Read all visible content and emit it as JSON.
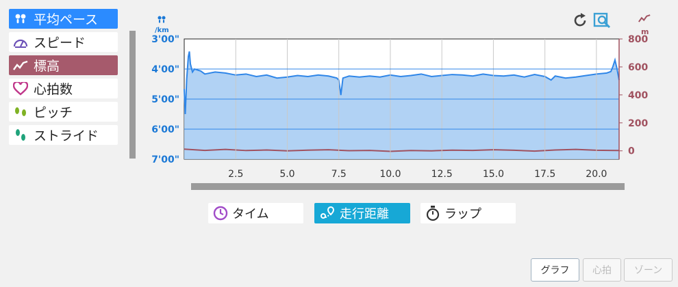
{
  "metrics": [
    {
      "label": "平均ペース",
      "icon": "footprints-icon",
      "state": "active-pace"
    },
    {
      "label": "スピード",
      "icon": "speedometer-icon",
      "state": ""
    },
    {
      "label": "標高",
      "icon": "elevation-icon",
      "state": "active-elev"
    },
    {
      "label": "心拍数",
      "icon": "heart-icon",
      "state": ""
    },
    {
      "label": "ピッチ",
      "icon": "cadence-icon",
      "state": ""
    },
    {
      "label": "ストライド",
      "icon": "stride-icon",
      "state": ""
    }
  ],
  "tabs": [
    {
      "label": "タイム",
      "icon": "clock-icon",
      "active": false
    },
    {
      "label": "走行距離",
      "icon": "route-icon",
      "active": true
    },
    {
      "label": "ラップ",
      "icon": "stopwatch-icon",
      "active": false
    }
  ],
  "modes": [
    {
      "label": "グラフ",
      "active": true
    },
    {
      "label": "心拍",
      "active": false
    },
    {
      "label": "ゾーン",
      "active": false
    }
  ],
  "chart_data": {
    "type": "line",
    "pace_unit": "/km",
    "elevation_unit": "m",
    "colors": {
      "pace": "#2f86e8",
      "pace_fill": "#a9cdf3",
      "elevation": "#a0515f",
      "left_axis": "#1a78d6",
      "right_axis": "#a0515f"
    },
    "left_ticks": [
      "3'00\"",
      "4'00\"",
      "5'00\"",
      "6'00\"",
      "7'00\""
    ],
    "right_ticks": [
      "800",
      "600",
      "400",
      "200",
      "0"
    ],
    "x_ticks": [
      "2.5",
      "5.0",
      "7.5",
      "10.0",
      "12.5",
      "15.0",
      "17.5",
      "20.0"
    ],
    "x_range": [
      0,
      21.1
    ],
    "left_range_seconds_per_km": [
      180,
      420
    ],
    "right_range_m": [
      -60,
      800
    ],
    "series": [
      {
        "axis": "left",
        "x": [
          0,
          0.05,
          0.12,
          0.2,
          0.25,
          0.3,
          0.4,
          0.5,
          0.8,
          1.0,
          1.5,
          2.0,
          2.5,
          3.0,
          3.5,
          4.0,
          4.5,
          5.0,
          5.5,
          6.0,
          6.5,
          7.0,
          7.4,
          7.5,
          7.6,
          7.7,
          8.0,
          8.5,
          9.0,
          9.5,
          10.0,
          10.5,
          11.0,
          11.5,
          12.0,
          12.5,
          13.0,
          13.5,
          14.0,
          14.5,
          15.0,
          15.5,
          16.0,
          16.5,
          17.0,
          17.5,
          17.8,
          18.0,
          18.5,
          19.0,
          19.5,
          20.0,
          20.5,
          20.7,
          20.8,
          20.9,
          21.0,
          21.1
        ],
        "values": [
          280,
          330,
          260,
          215,
          205,
          230,
          246,
          240,
          244,
          250,
          246,
          248,
          252,
          250,
          255,
          252,
          258,
          256,
          253,
          255,
          252,
          254,
          258,
          262,
          292,
          258,
          254,
          256,
          254,
          256,
          252,
          255,
          253,
          250,
          255,
          253,
          251,
          252,
          254,
          250,
          253,
          254,
          252,
          256,
          251,
          255,
          262,
          254,
          258,
          256,
          253,
          250,
          248,
          245,
          235,
          222,
          240,
          262
        ]
      },
      {
        "axis": "right",
        "x": [
          0,
          1,
          2,
          3,
          4,
          5,
          6,
          7,
          8,
          9,
          10,
          11,
          12,
          13,
          14,
          15,
          16,
          17,
          18,
          19,
          20,
          21.1
        ],
        "values": [
          12,
          3,
          10,
          2,
          6,
          0,
          5,
          8,
          1,
          3,
          -4,
          2,
          0,
          5,
          3,
          8,
          4,
          -2,
          6,
          10,
          4,
          2
        ]
      }
    ]
  }
}
